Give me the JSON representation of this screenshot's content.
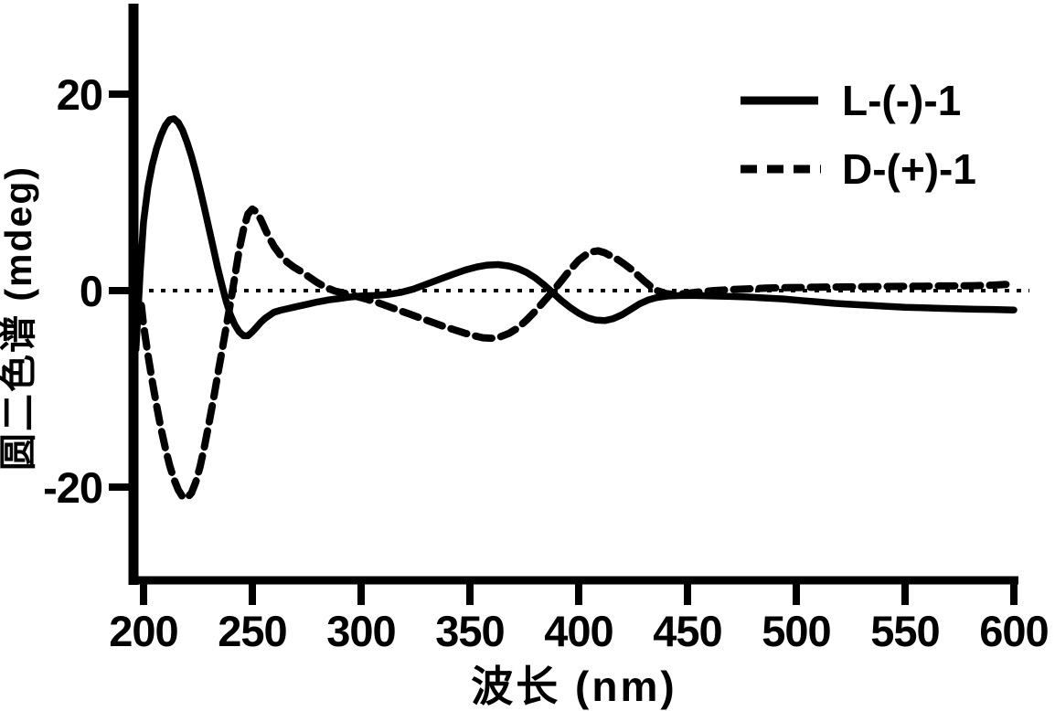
{
  "figure": {
    "background": "#ffffff",
    "ink": "#000000",
    "description": "Scanned black-and-white circular dichroism (CD) spectra of two enantiomers"
  },
  "chart_data": {
    "type": "line",
    "title": "",
    "xlabel": "波长 (nm)",
    "ylabel": "圆二色谱 (mdeg)",
    "x_unit": "nm",
    "y_unit": "mdeg",
    "xlim": [
      196,
      604
    ],
    "ylim": [
      -29,
      29
    ],
    "x_ticks": [
      200,
      250,
      300,
      350,
      400,
      450,
      500,
      550,
      600
    ],
    "y_ticks": [
      20,
      0,
      -20
    ],
    "grid": false,
    "zero_line": true,
    "legend_position": "upper-right",
    "series": [
      {
        "name": "L-(-)-1",
        "line_style": "solid",
        "color": "#000000",
        "points": [
          [
            196.5,
            -6
          ],
          [
            197.5,
            -2
          ],
          [
            198.5,
            2
          ],
          [
            200,
            7
          ],
          [
            202,
            10.5
          ],
          [
            204,
            12.8
          ],
          [
            206,
            14.5
          ],
          [
            208,
            15.8
          ],
          [
            210,
            16.8
          ],
          [
            212,
            17.4
          ],
          [
            214,
            17.5
          ],
          [
            216,
            17.1
          ],
          [
            218,
            16.3
          ],
          [
            220,
            15.1
          ],
          [
            222,
            13.7
          ],
          [
            224,
            12.1
          ],
          [
            226,
            10.3
          ],
          [
            228,
            8.4
          ],
          [
            230,
            6.4
          ],
          [
            232,
            4.4
          ],
          [
            234,
            2.4
          ],
          [
            236,
            0.6
          ],
          [
            238,
            -1.1
          ],
          [
            240,
            -2.5
          ],
          [
            242,
            -3.5
          ],
          [
            244,
            -4.2
          ],
          [
            246,
            -4.6
          ],
          [
            248,
            -4.6
          ],
          [
            250,
            -4.2
          ],
          [
            252,
            -3.7
          ],
          [
            254,
            -3.2
          ],
          [
            256,
            -2.8
          ],
          [
            258,
            -2.5
          ],
          [
            260,
            -2.2
          ],
          [
            263,
            -2.0
          ],
          [
            266,
            -1.85
          ],
          [
            270,
            -1.65
          ],
          [
            275,
            -1.4
          ],
          [
            280,
            -1.15
          ],
          [
            285,
            -0.95
          ],
          [
            290,
            -0.8
          ],
          [
            295,
            -0.65
          ],
          [
            300,
            -0.55
          ],
          [
            306,
            -0.5
          ],
          [
            312,
            -0.4
          ],
          [
            318,
            -0.2
          ],
          [
            324,
            0.15
          ],
          [
            330,
            0.65
          ],
          [
            336,
            1.15
          ],
          [
            342,
            1.65
          ],
          [
            348,
            2.1
          ],
          [
            353,
            2.4
          ],
          [
            358,
            2.6
          ],
          [
            363,
            2.65
          ],
          [
            368,
            2.5
          ],
          [
            372,
            2.25
          ],
          [
            376,
            1.85
          ],
          [
            380,
            1.3
          ],
          [
            384,
            0.6
          ],
          [
            388,
            -0.2
          ],
          [
            392,
            -1.0
          ],
          [
            396,
            -1.7
          ],
          [
            400,
            -2.3
          ],
          [
            404,
            -2.75
          ],
          [
            408,
            -3.0
          ],
          [
            412,
            -3.05
          ],
          [
            416,
            -2.85
          ],
          [
            420,
            -2.45
          ],
          [
            424,
            -1.9
          ],
          [
            428,
            -1.35
          ],
          [
            432,
            -0.95
          ],
          [
            436,
            -0.7
          ],
          [
            441,
            -0.55
          ],
          [
            447,
            -0.5
          ],
          [
            454,
            -0.5
          ],
          [
            462,
            -0.55
          ],
          [
            470,
            -0.6
          ],
          [
            478,
            -0.65
          ],
          [
            486,
            -0.75
          ],
          [
            494,
            -0.85
          ],
          [
            502,
            -1.0
          ],
          [
            510,
            -1.15
          ],
          [
            518,
            -1.3
          ],
          [
            526,
            -1.4
          ],
          [
            534,
            -1.5
          ],
          [
            542,
            -1.6
          ],
          [
            550,
            -1.7
          ],
          [
            558,
            -1.75
          ],
          [
            566,
            -1.8
          ],
          [
            574,
            -1.85
          ],
          [
            582,
            -1.9
          ],
          [
            590,
            -1.92
          ],
          [
            596,
            -1.95
          ],
          [
            600,
            -1.97
          ]
        ]
      },
      {
        "name": "D-(+)-1",
        "line_style": "dashed",
        "color": "#000000",
        "points": [
          [
            199,
            -1.5
          ],
          [
            200,
            -3.5
          ],
          [
            202,
            -6.5
          ],
          [
            204,
            -9.2
          ],
          [
            206,
            -11.7
          ],
          [
            208,
            -14.0
          ],
          [
            210,
            -16.0
          ],
          [
            212,
            -17.8
          ],
          [
            214,
            -19.2
          ],
          [
            216,
            -20.3
          ],
          [
            218,
            -21.0
          ],
          [
            220,
            -21.1
          ],
          [
            222,
            -20.6
          ],
          [
            224,
            -19.5
          ],
          [
            226,
            -17.9
          ],
          [
            228,
            -15.9
          ],
          [
            230,
            -13.6
          ],
          [
            232,
            -11.2
          ],
          [
            234,
            -8.7
          ],
          [
            236,
            -6.2
          ],
          [
            238,
            -3.7
          ],
          [
            240,
            -1.2
          ],
          [
            242,
            1.5
          ],
          [
            244,
            4.2
          ],
          [
            246,
            6.3
          ],
          [
            248,
            7.8
          ],
          [
            250,
            8.3
          ],
          [
            252,
            8.0
          ],
          [
            254,
            7.2
          ],
          [
            256,
            6.2
          ],
          [
            258,
            5.3
          ],
          [
            260,
            4.5
          ],
          [
            263,
            3.6
          ],
          [
            266,
            2.9
          ],
          [
            269,
            2.4
          ],
          [
            272,
            2.0
          ],
          [
            276,
            1.4
          ],
          [
            280,
            0.8
          ],
          [
            284,
            0.3
          ],
          [
            288,
            -0.05
          ],
          [
            293,
            -0.3
          ],
          [
            298,
            -0.6
          ],
          [
            303,
            -0.9
          ],
          [
            308,
            -1.25
          ],
          [
            313,
            -1.65
          ],
          [
            318,
            -2.05
          ],
          [
            323,
            -2.45
          ],
          [
            328,
            -2.85
          ],
          [
            333,
            -3.25
          ],
          [
            338,
            -3.65
          ],
          [
            343,
            -4.0
          ],
          [
            348,
            -4.35
          ],
          [
            352,
            -4.6
          ],
          [
            356,
            -4.8
          ],
          [
            360,
            -4.85
          ],
          [
            364,
            -4.7
          ],
          [
            368,
            -4.35
          ],
          [
            372,
            -3.8
          ],
          [
            376,
            -3.0
          ],
          [
            380,
            -2.1
          ],
          [
            384,
            -1.1
          ],
          [
            388,
            -0.1
          ],
          [
            392,
            1.0
          ],
          [
            396,
            2.1
          ],
          [
            400,
            3.1
          ],
          [
            403,
            3.6
          ],
          [
            406,
            3.95
          ],
          [
            409,
            4.05
          ],
          [
            412,
            3.85
          ],
          [
            415,
            3.5
          ],
          [
            418,
            3.15
          ],
          [
            421,
            2.7
          ],
          [
            424,
            2.2
          ],
          [
            427,
            1.6
          ],
          [
            430,
            1.0
          ],
          [
            433,
            0.45
          ],
          [
            436,
            0.0
          ],
          [
            440,
            -0.3
          ],
          [
            444,
            -0.4
          ],
          [
            449,
            -0.3
          ],
          [
            455,
            -0.15
          ],
          [
            462,
            0.0
          ],
          [
            470,
            0.1
          ],
          [
            478,
            0.18
          ],
          [
            486,
            0.25
          ],
          [
            494,
            0.3
          ],
          [
            502,
            0.32
          ],
          [
            510,
            0.35
          ],
          [
            518,
            0.36
          ],
          [
            526,
            0.38
          ],
          [
            534,
            0.4
          ],
          [
            542,
            0.42
          ],
          [
            550,
            0.44
          ],
          [
            558,
            0.45
          ],
          [
            566,
            0.47
          ],
          [
            574,
            0.48
          ],
          [
            582,
            0.5
          ],
          [
            590,
            0.55
          ],
          [
            596,
            0.62
          ],
          [
            600,
            0.72
          ]
        ]
      }
    ]
  }
}
